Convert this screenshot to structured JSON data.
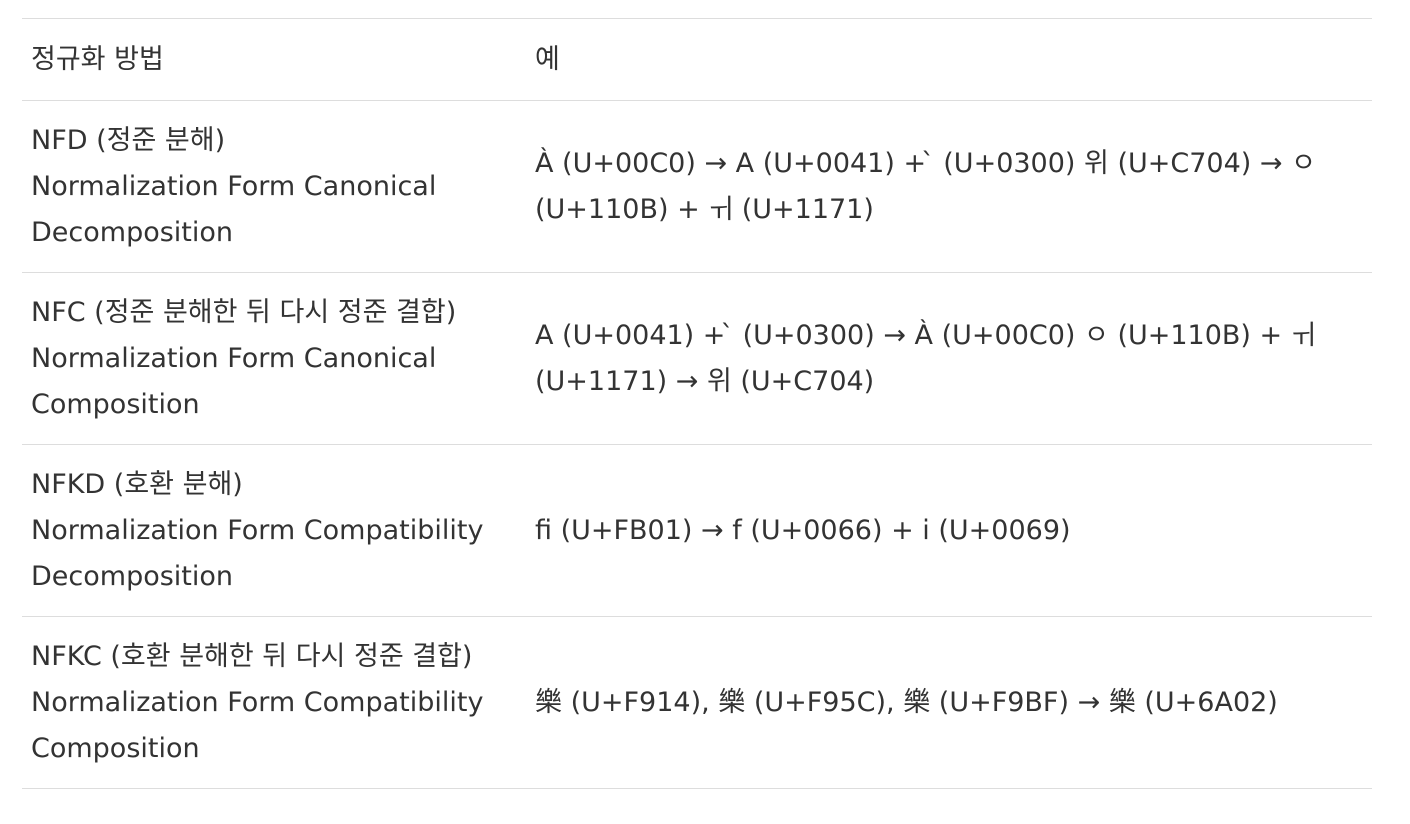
{
  "table": {
    "headers": {
      "method": "정규화 방법",
      "example": "예"
    },
    "rows": [
      {
        "method_lines": [
          "NFD (정준 분해)",
          "Normalization Form Canonical",
          "Decomposition"
        ],
        "example_lines": [
          "À (U+00C0) → A (U+0041) + ̀ (U+0300) 위 (U+C704) → ㅇ",
          "(U+110B) + ㅟ (U+1171)"
        ]
      },
      {
        "method_lines": [
          "NFC (정준 분해한 뒤 다시 정준 결합)",
          "Normalization Form Canonical",
          "Composition"
        ],
        "example_lines": [
          "A (U+0041) + ̀ (U+0300) → À (U+00C0) ㅇ (U+110B) + ㅟ",
          "(U+1171) → 위 (U+C704)"
        ]
      },
      {
        "method_lines": [
          "NFKD (호환 분해)",
          "Normalization Form Compatibility",
          "Decomposition"
        ],
        "example_lines": [
          "ﬁ (U+FB01) → f (U+0066) + i (U+0069)"
        ]
      },
      {
        "method_lines": [
          "NFKC (호환 분해한 뒤 다시 정준 결합)",
          "Normalization Form Compatibility",
          "Composition"
        ],
        "example_lines": [
          "樂 (U+F914), 樂 (U+F95C), 樂 (U+F9BF) → 樂 (U+6A02)"
        ]
      }
    ]
  }
}
